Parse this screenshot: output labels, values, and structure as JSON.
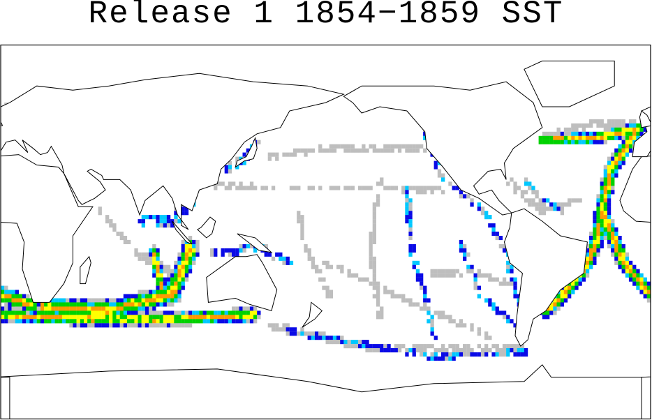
{
  "title": "Release 1 1854−1859 SST"
}
